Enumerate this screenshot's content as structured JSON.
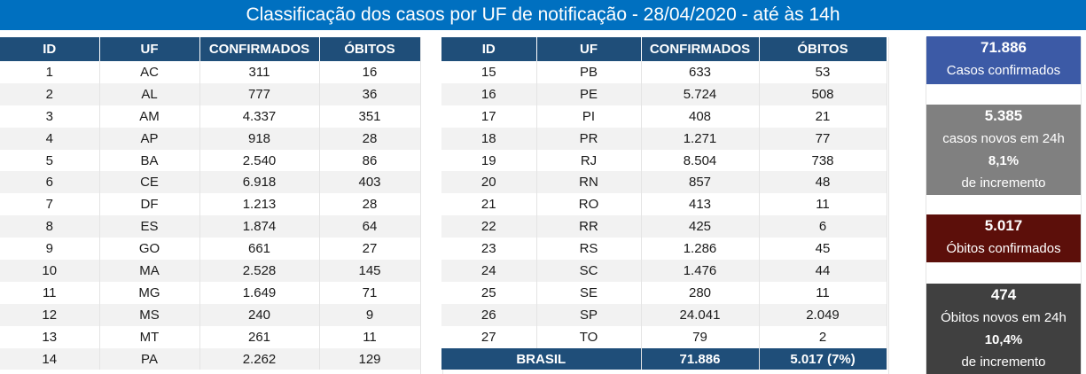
{
  "title": "Classificação dos casos por UF de notificação - 28/04/2020 - até às 14h",
  "headers": [
    "ID",
    "UF",
    "CONFIRMADOS",
    "ÓBITOS"
  ],
  "left_rows": [
    [
      "1",
      "AC",
      "311",
      "16"
    ],
    [
      "2",
      "AL",
      "777",
      "36"
    ],
    [
      "3",
      "AM",
      "4.337",
      "351"
    ],
    [
      "4",
      "AP",
      "918",
      "28"
    ],
    [
      "5",
      "BA",
      "2.540",
      "86"
    ],
    [
      "6",
      "CE",
      "6.918",
      "403"
    ],
    [
      "7",
      "DF",
      "1.213",
      "28"
    ],
    [
      "8",
      "ES",
      "1.874",
      "64"
    ],
    [
      "9",
      "GO",
      "661",
      "27"
    ],
    [
      "10",
      "MA",
      "2.528",
      "145"
    ],
    [
      "11",
      "MG",
      "1.649",
      "71"
    ],
    [
      "12",
      "MS",
      "240",
      "9"
    ],
    [
      "13",
      "MT",
      "261",
      "11"
    ],
    [
      "14",
      "PA",
      "2.262",
      "129"
    ]
  ],
  "right_rows": [
    [
      "15",
      "PB",
      "633",
      "53"
    ],
    [
      "16",
      "PE",
      "5.724",
      "508"
    ],
    [
      "17",
      "PI",
      "408",
      "21"
    ],
    [
      "18",
      "PR",
      "1.271",
      "77"
    ],
    [
      "19",
      "RJ",
      "8.504",
      "738"
    ],
    [
      "20",
      "RN",
      "857",
      "48"
    ],
    [
      "21",
      "RO",
      "413",
      "11"
    ],
    [
      "22",
      "RR",
      "425",
      "6"
    ],
    [
      "23",
      "RS",
      "1.286",
      "45"
    ],
    [
      "24",
      "SC",
      "1.476",
      "44"
    ],
    [
      "25",
      "SE",
      "280",
      "11"
    ],
    [
      "26",
      "SP",
      "24.041",
      "2.049"
    ],
    [
      "27",
      "TO",
      "79",
      "2"
    ]
  ],
  "total": {
    "label": "BRASIL",
    "confirmed": "71.886",
    "deaths": "5.017 (7%)"
  },
  "cards": {
    "confirmed": {
      "value": "71.886",
      "label": "Casos confirmados",
      "color": "#3c5aa6"
    },
    "new_cases": {
      "value": "5.385",
      "label": "casos novos em 24h",
      "pct": "8,1%",
      "pct_label": "de incremento",
      "color": "#808080"
    },
    "deaths": {
      "value": "5.017",
      "label": "Óbitos confirmados",
      "color": "#5c0f0a"
    },
    "new_deaths": {
      "value": "474",
      "label": "Óbitos novos em 24h",
      "pct": "10,4%",
      "pct_label": "de incremento",
      "color": "#404040"
    }
  }
}
